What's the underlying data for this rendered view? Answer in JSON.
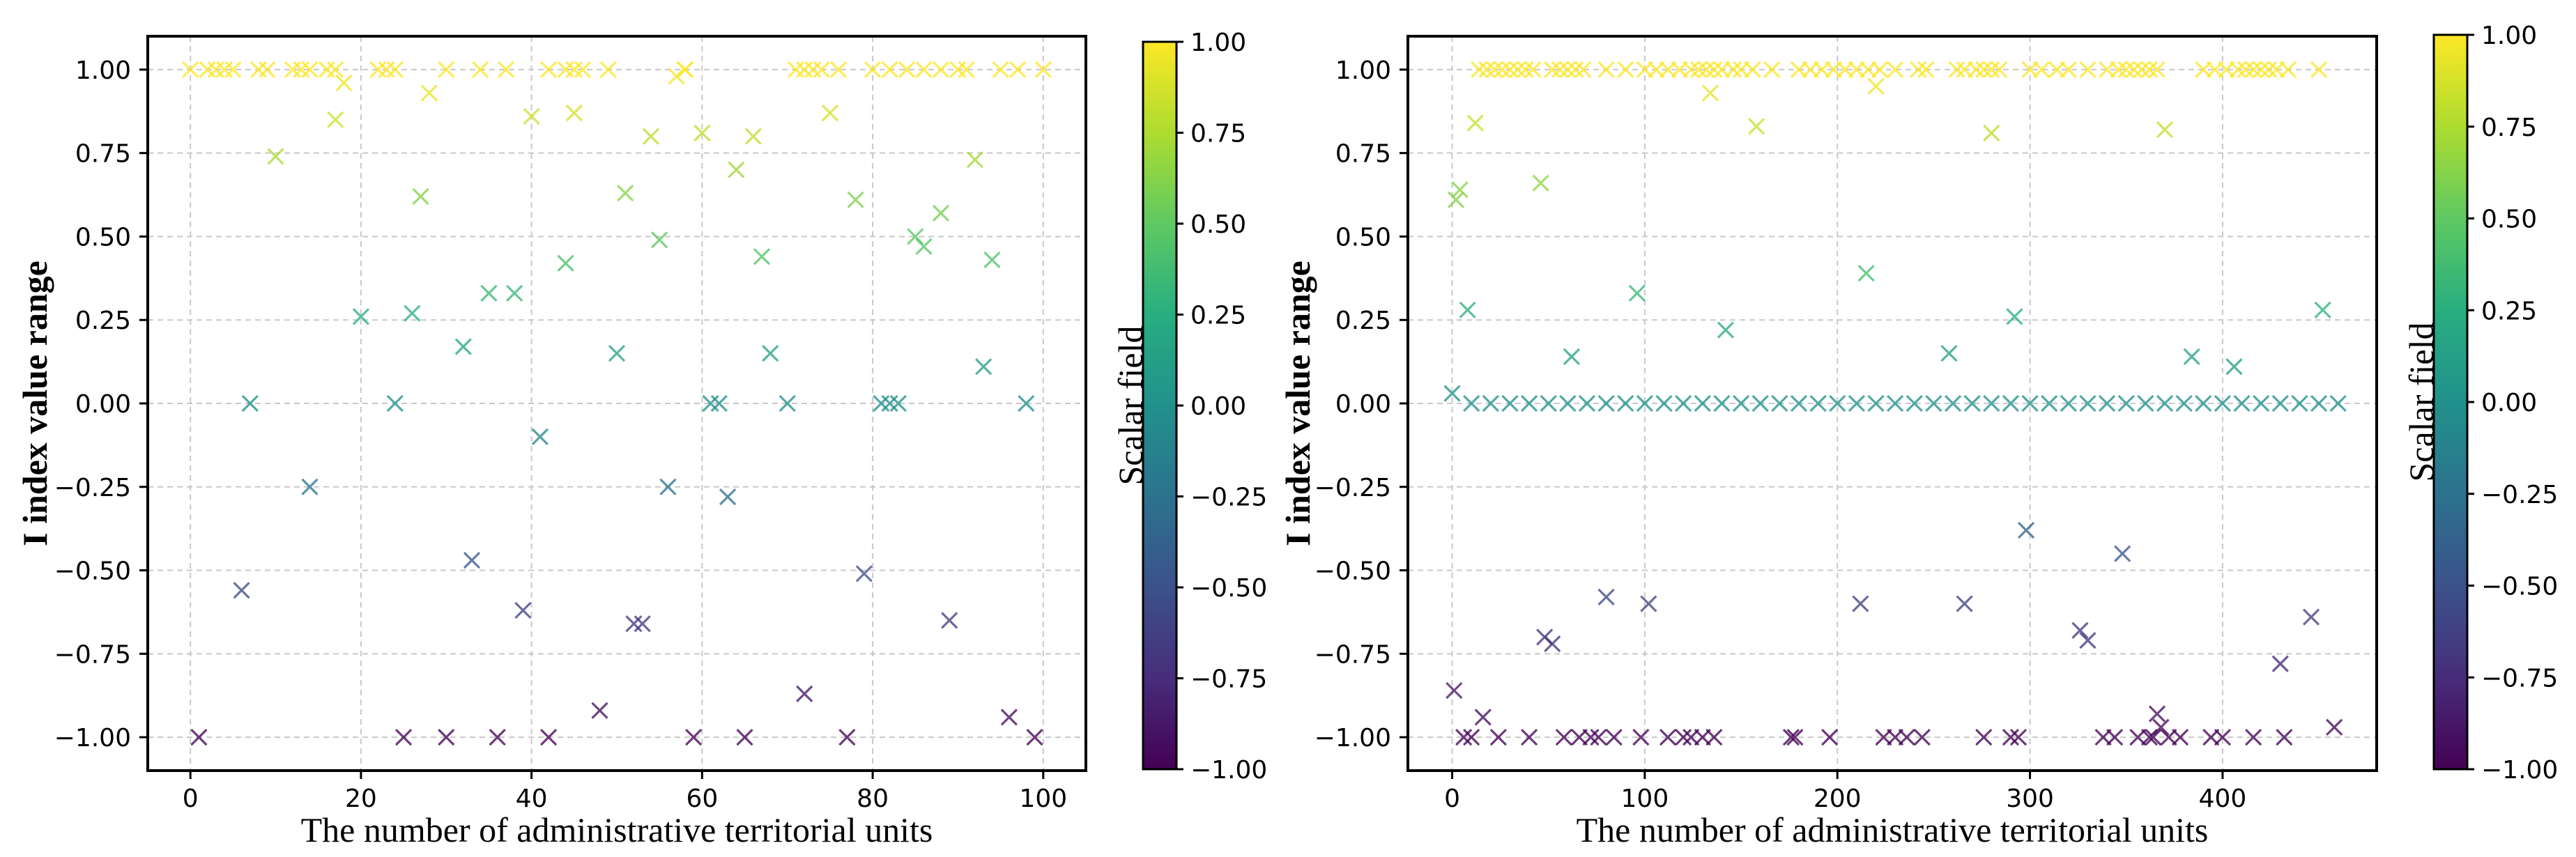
{
  "chart_data": [
    {
      "type": "scatter",
      "title": "",
      "xlabel": "The number of administrative territorial units",
      "ylabel": "I index value range",
      "xlim": [
        -5,
        105
      ],
      "ylim": [
        -1.1,
        1.1
      ],
      "xticks": [
        0,
        20,
        40,
        60,
        80,
        100
      ],
      "yticks": [
        -1.0,
        -0.75,
        -0.5,
        -0.25,
        0.0,
        0.25,
        0.5,
        0.75,
        1.0
      ],
      "xtick_labels": [
        "0",
        "20",
        "40",
        "60",
        "80",
        "100"
      ],
      "ytick_labels": [
        "−1.00",
        "−0.75",
        "−0.50",
        "−0.25",
        "0.00",
        "0.25",
        "0.50",
        "0.75",
        "1.00"
      ],
      "grid": true,
      "marker": "x",
      "colormap": "viridis",
      "colorbar": {
        "label": "Scalar field",
        "range": [
          -1.0,
          1.0
        ],
        "ticks": [
          -1.0,
          -0.75,
          -0.5,
          -0.25,
          0.0,
          0.25,
          0.5,
          0.75,
          1.0
        ],
        "tick_labels": [
          "−1.00",
          "−0.75",
          "−0.50",
          "−0.25",
          "0.00",
          "0.25",
          "0.50",
          "0.75",
          "1.00"
        ]
      },
      "x": [
        0,
        2,
        3,
        4,
        5,
        8,
        9,
        12,
        13,
        14,
        16,
        17,
        22,
        23,
        24,
        30,
        34,
        37,
        42,
        44,
        45,
        46,
        49,
        58,
        71,
        72,
        73,
        74,
        76,
        80,
        82,
        84,
        86,
        88,
        90,
        91,
        95,
        97,
        100,
        1,
        6,
        7,
        10,
        14,
        17,
        18,
        20,
        24,
        25,
        26,
        27,
        28,
        30,
        32,
        33,
        35,
        36,
        38,
        39,
        40,
        41,
        42,
        44,
        45,
        48,
        50,
        51,
        52,
        53,
        54,
        55,
        56,
        57,
        58,
        59,
        60,
        61,
        62,
        63,
        64,
        65,
        66,
        67,
        68,
        70,
        72,
        75,
        77,
        78,
        79,
        81,
        82,
        83,
        85,
        86,
        88,
        89,
        92,
        93,
        94,
        96,
        98,
        99
      ],
      "y": [
        1,
        1,
        1,
        1,
        1,
        1,
        1,
        1,
        1,
        1,
        1,
        1,
        1,
        1,
        1,
        1,
        1,
        1,
        1,
        1,
        1,
        1,
        1,
        1,
        1,
        1,
        1,
        1,
        1,
        1,
        1,
        1,
        1,
        1,
        1,
        1,
        1,
        1,
        1,
        -1,
        -0.56,
        0,
        0.74,
        -0.25,
        0.85,
        0.96,
        0.26,
        0,
        -1,
        0.27,
        0.62,
        0.93,
        -1,
        0.17,
        -0.47,
        0.33,
        -1,
        0.33,
        -0.62,
        0.86,
        -0.1,
        -1,
        0.42,
        0.87,
        -0.92,
        0.15,
        0.63,
        -0.66,
        -0.66,
        0.8,
        0.49,
        -0.25,
        0.98,
        1,
        -1,
        0.81,
        0,
        0,
        -0.28,
        0.7,
        -1,
        0.8,
        0.44,
        0.15,
        0,
        -0.87,
        0.87,
        -1,
        0.61,
        -0.51,
        0,
        0,
        0,
        0.5,
        0.47,
        0.57,
        -0.65,
        0.73,
        0.11,
        0.43,
        -0.94,
        0,
        -1
      ]
    },
    {
      "type": "scatter",
      "title": "",
      "xlabel": "The number of administrative territorial units",
      "ylabel": "I index value range",
      "xlim": [
        -23,
        480
      ],
      "ylim": [
        -1.1,
        1.1
      ],
      "xticks": [
        0,
        100,
        200,
        300,
        400
      ],
      "yticks": [
        -1.0,
        -0.75,
        -0.5,
        -0.25,
        0.0,
        0.25,
        0.5,
        0.75,
        1.0
      ],
      "xtick_labels": [
        "0",
        "100",
        "200",
        "300",
        "400"
      ],
      "ytick_labels": [
        "−1.00",
        "−0.75",
        "−0.50",
        "−0.25",
        "0.00",
        "0.25",
        "0.50",
        "0.75",
        "1.00"
      ],
      "grid": true,
      "marker": "x",
      "colormap": "viridis",
      "colorbar": {
        "label": "Scalar field",
        "range": [
          -1.0,
          1.0
        ],
        "ticks": [
          -1.0,
          -0.75,
          -0.5,
          -0.25,
          0.0,
          0.25,
          0.5,
          0.75,
          1.0
        ],
        "tick_labels": [
          "−1.00",
          "−0.75",
          "−0.50",
          "−0.25",
          "0.00",
          "0.25",
          "0.50",
          "0.75",
          "1.00"
        ]
      },
      "x": [
        14,
        18,
        22,
        26,
        30,
        34,
        38,
        42,
        52,
        56,
        60,
        64,
        68,
        80,
        90,
        100,
        106,
        112,
        118,
        124,
        128,
        132,
        136,
        140,
        146,
        150,
        156,
        166,
        180,
        186,
        192,
        198,
        204,
        210,
        216,
        222,
        230,
        242,
        246,
        262,
        266,
        272,
        276,
        280,
        284,
        300,
        306,
        314,
        320,
        330,
        340,
        346,
        350,
        354,
        358,
        362,
        366,
        390,
        396,
        402,
        408,
        412,
        416,
        420,
        424,
        428,
        434,
        450,
        10,
        20,
        30,
        40,
        50,
        60,
        70,
        80,
        90,
        100,
        110,
        120,
        130,
        140,
        150,
        160,
        170,
        180,
        190,
        200,
        210,
        220,
        230,
        240,
        250,
        260,
        270,
        280,
        290,
        300,
        310,
        320,
        330,
        340,
        350,
        360,
        370,
        380,
        390,
        400,
        410,
        420,
        430,
        440,
        450,
        460,
        0,
        2,
        4,
        8,
        12,
        46,
        62,
        96,
        134,
        142,
        158,
        215,
        220,
        258,
        280,
        292,
        370,
        384,
        406,
        452,
        1,
        6,
        10,
        16,
        24,
        40,
        48,
        52,
        58,
        66,
        72,
        76,
        80,
        84,
        98,
        102,
        112,
        120,
        124,
        130,
        136,
        176,
        178,
        196,
        212,
        224,
        230,
        236,
        244,
        266,
        276,
        290,
        294,
        298,
        326,
        330,
        338,
        344,
        348,
        356,
        362,
        364,
        366,
        368,
        372,
        378,
        394,
        400,
        416,
        430,
        432,
        446,
        458
      ],
      "y": [
        1,
        1,
        1,
        1,
        1,
        1,
        1,
        1,
        1,
        1,
        1,
        1,
        1,
        1,
        1,
        1,
        1,
        1,
        1,
        1,
        1,
        1,
        1,
        1,
        1,
        1,
        1,
        1,
        1,
        1,
        1,
        1,
        1,
        1,
        1,
        1,
        1,
        1,
        1,
        1,
        1,
        1,
        1,
        1,
        1,
        1,
        1,
        1,
        1,
        1,
        1,
        1,
        1,
        1,
        1,
        1,
        1,
        1,
        1,
        1,
        1,
        1,
        1,
        1,
        1,
        1,
        1,
        1,
        0,
        0,
        0,
        0,
        0,
        0,
        0,
        0,
        0,
        0,
        0,
        0,
        0,
        0,
        0,
        0,
        0,
        0,
        0,
        0,
        0,
        0,
        0,
        0,
        0,
        0,
        0,
        0,
        0,
        0,
        0,
        0,
        0,
        0,
        0,
        0,
        0,
        0,
        0,
        0,
        0,
        0,
        0,
        0,
        0,
        0,
        0.03,
        0.61,
        0.64,
        0.28,
        0.84,
        0.66,
        0.14,
        0.33,
        0.93,
        0.22,
        0.83,
        0.39,
        0.95,
        0.15,
        0.81,
        0.26,
        0.82,
        0.14,
        0.11,
        0.28,
        -0.86,
        -1,
        -1,
        -0.94,
        -1,
        -1,
        -0.7,
        -0.72,
        -1,
        -1,
        -1,
        -1,
        -0.58,
        -1,
        -1,
        -0.6,
        -1,
        -1,
        -1,
        -1,
        -1,
        -1,
        -1,
        -1,
        -0.6,
        -1,
        -1,
        -1,
        -1,
        -0.6,
        -1,
        -1,
        -1,
        -0.38,
        -0.68,
        -0.71,
        -1,
        -1,
        -0.45,
        -1,
        -1,
        -1,
        -0.93,
        -0.97,
        -1,
        -1,
        -1,
        -1,
        -1,
        -0.78,
        -1,
        -0.64,
        -0.97
      ]
    }
  ]
}
